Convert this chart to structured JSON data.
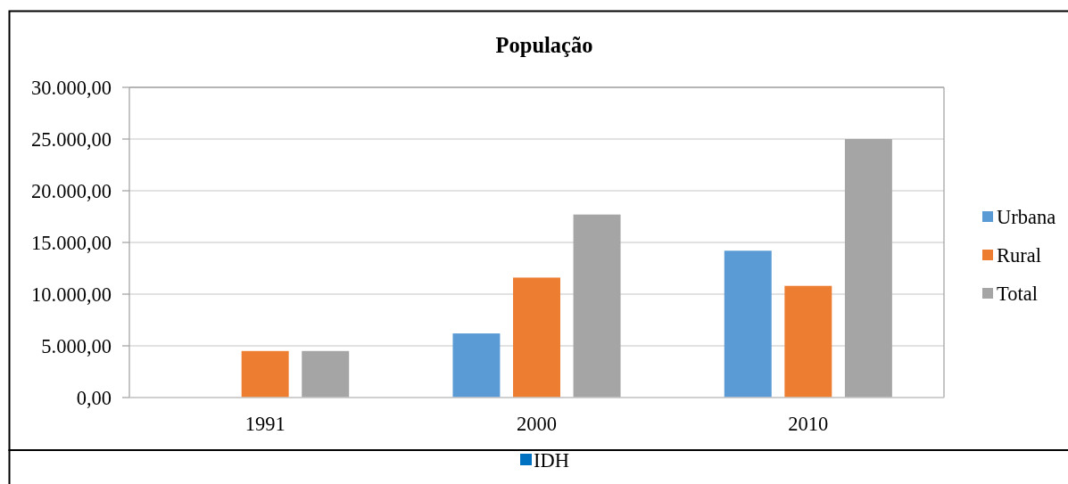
{
  "chart_data": {
    "type": "bar",
    "title": "População",
    "categories": [
      "1991",
      "2000",
      "2010"
    ],
    "series": [
      {
        "name": "Urbana",
        "color": "#5b9bd5",
        "values": [
          null,
          6200,
          14200
        ]
      },
      {
        "name": "Rural",
        "color": "#ed7d31",
        "values": [
          4500,
          11600,
          10800
        ]
      },
      {
        "name": "Total",
        "color": "#a5a5a5",
        "values": [
          4500,
          17700,
          25000
        ]
      }
    ],
    "ylim": [
      0,
      30000
    ],
    "yticks": [
      {
        "value": 0,
        "label": "0,00"
      },
      {
        "value": 5000,
        "label": "5.000,00"
      },
      {
        "value": 10000,
        "label": "10.000,00"
      },
      {
        "value": 15000,
        "label": "15.000,00"
      },
      {
        "value": 20000,
        "label": "20.000,00"
      },
      {
        "value": 25000,
        "label": "25.000,00"
      },
      {
        "value": 30000,
        "label": "30.000,00"
      }
    ],
    "grid": "y",
    "legend": "right",
    "annotations": [
      "IDH"
    ]
  }
}
